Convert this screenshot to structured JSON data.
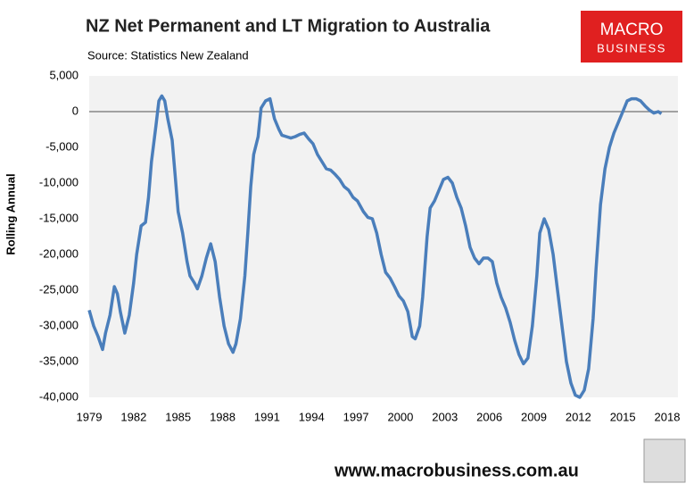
{
  "chart_data": {
    "type": "line",
    "title": "NZ Net Permanent and LT Migration to Australia",
    "subtitle": "Source: Statistics New Zealand",
    "y_label": "Rolling Annual",
    "logo": [
      "MACRO",
      "BUSINESS"
    ],
    "footer": "www.macrobusiness.com.au",
    "xlim": [
      1979,
      2018
    ],
    "xticks": [
      1979,
      1982,
      1985,
      1988,
      1991,
      1994,
      1997,
      2000,
      2003,
      2006,
      2009,
      2012,
      2015,
      2018
    ],
    "ylim": [
      -40000,
      5000
    ],
    "yticks": [
      {
        "value": 5000,
        "label": "5,000"
      },
      0,
      {
        "value": -5000,
        "label": "-5,000"
      },
      {
        "value": -10000,
        "label": "-10,000"
      },
      {
        "value": -15000,
        "label": "-15,000"
      },
      {
        "value": -20000,
        "label": "-20,000"
      },
      {
        "value": -25000,
        "label": "-25,000"
      },
      {
        "value": -30000,
        "label": "-30,000"
      },
      {
        "value": -35000,
        "label": "-35,000"
      },
      {
        "value": -40000,
        "label": "-40,000"
      }
    ],
    "grid": false,
    "series": [
      {
        "color": "#4a7ebb",
        "x": [
          1979.0,
          1979.3,
          1979.6,
          1979.9,
          1980.1,
          1980.4,
          1980.7,
          1980.9,
          1981.1,
          1981.4,
          1981.7,
          1982.0,
          1982.2,
          1982.5,
          1982.8,
          1983.0,
          1983.2,
          1983.5,
          1983.7,
          1983.9,
          1984.1,
          1984.3,
          1984.6,
          1984.8,
          1985.0,
          1985.3,
          1985.6,
          1985.8,
          1986.1,
          1986.3,
          1986.6,
          1986.9,
          1987.2,
          1987.5,
          1987.8,
          1988.1,
          1988.4,
          1988.7,
          1988.9,
          1989.2,
          1989.5,
          1989.7,
          1989.9,
          1990.1,
          1990.4,
          1990.6,
          1990.9,
          1991.2,
          1991.5,
          1991.8,
          1992.0,
          1992.3,
          1992.6,
          1992.9,
          1993.2,
          1993.5,
          1993.8,
          1994.1,
          1994.4,
          1994.7,
          1995.0,
          1995.3,
          1995.6,
          1995.9,
          1996.2,
          1996.5,
          1996.8,
          1997.1,
          1997.5,
          1997.8,
          1998.1,
          1998.4,
          1998.7,
          1999.0,
          1999.3,
          1999.6,
          1999.9,
          2000.2,
          2000.5,
          2000.8,
          2001.0,
          2001.3,
          2001.5,
          2001.8,
          2002.0,
          2002.3,
          2002.6,
          2002.9,
          2003.2,
          2003.5,
          2003.8,
          2004.1,
          2004.4,
          2004.7,
          2005.0,
          2005.3,
          2005.6,
          2005.9,
          2006.2,
          2006.5,
          2006.8,
          2007.1,
          2007.4,
          2007.7,
          2008.0,
          2008.3,
          2008.6,
          2008.9,
          2009.2,
          2009.4,
          2009.7,
          2010.0,
          2010.3,
          2010.6,
          2010.9,
          2011.2,
          2011.5,
          2011.8,
          2012.1,
          2012.4,
          2012.7,
          2013.0,
          2013.2,
          2013.5,
          2013.8,
          2014.1,
          2014.4,
          2014.7,
          2015.0,
          2015.3,
          2015.6,
          2015.9,
          2016.2,
          2016.5,
          2016.8,
          2017.1,
          2017.4,
          2017.6
        ],
        "values": [
          -27800,
          -30000,
          -31500,
          -33300,
          -31000,
          -28500,
          -24500,
          -25500,
          -28000,
          -31000,
          -28500,
          -24000,
          -20000,
          -16000,
          -15500,
          -12000,
          -7000,
          -2000,
          1500,
          2200,
          1500,
          -1000,
          -4000,
          -9000,
          -14000,
          -17000,
          -21000,
          -23000,
          -24000,
          -24800,
          -23000,
          -20500,
          -18500,
          -21000,
          -26000,
          -30000,
          -32500,
          -33700,
          -32500,
          -29000,
          -23000,
          -17000,
          -10500,
          -6000,
          -3500,
          500,
          1500,
          1800,
          -1000,
          -2500,
          -3300,
          -3500,
          -3700,
          -3500,
          -3200,
          -3000,
          -3800,
          -4500,
          -6000,
          -7000,
          -8000,
          -8200,
          -8800,
          -9500,
          -10500,
          -11000,
          -12000,
          -12500,
          -14000,
          -14800,
          -15000,
          -17000,
          -20000,
          -22500,
          -23300,
          -24500,
          -25800,
          -26500,
          -28000,
          -31500,
          -31800,
          -30000,
          -26000,
          -17500,
          -13500,
          -12500,
          -11000,
          -9500,
          -9200,
          -10000,
          -12000,
          -13500,
          -16000,
          -19000,
          -20500,
          -21300,
          -20500,
          -20500,
          -21000,
          -24000,
          -26000,
          -27500,
          -29500,
          -32000,
          -34000,
          -35300,
          -34500,
          -30000,
          -23000,
          -17000,
          -15000,
          -16500,
          -20000,
          -25000,
          -30000,
          -35000,
          -38000,
          -39700,
          -40000,
          -39000,
          -36000,
          -29000,
          -22000,
          -13000,
          -8000,
          -5000,
          -3000,
          -1500,
          0,
          1500,
          1800,
          1800,
          1500,
          800,
          200,
          -200,
          0,
          -300
        ]
      }
    ]
  }
}
